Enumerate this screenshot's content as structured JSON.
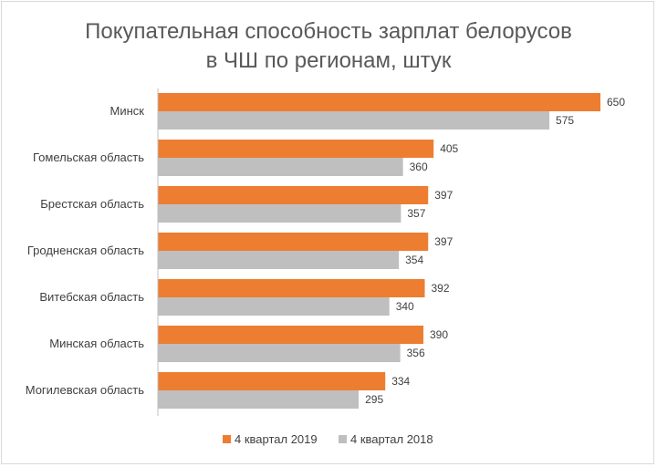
{
  "chart_data": {
    "type": "bar",
    "orientation": "horizontal",
    "title": [
      "Покупательная способность зарплат белорусов",
      "в ЧШ по регионам, штук"
    ],
    "categories": [
      "Минск",
      "Гомельская область",
      "Брестская область",
      "Гродненская область",
      "Витебская область",
      "Минская область",
      "Могилевская область"
    ],
    "series": [
      {
        "name": "4 квартал 2019",
        "color": "#ed7d31",
        "values": [
          650,
          405,
          397,
          397,
          392,
          390,
          334
        ]
      },
      {
        "name": "4 квартал 2018",
        "color": "#bfbfbf",
        "values": [
          575,
          360,
          357,
          354,
          340,
          356,
          295
        ]
      }
    ],
    "xlim": [
      0,
      700
    ],
    "grid": false,
    "legend_position": "bottom",
    "axis_color": "#bfbfbf"
  }
}
